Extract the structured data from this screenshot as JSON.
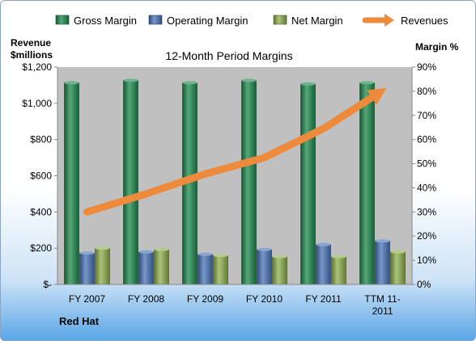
{
  "chart_data": {
    "type": "bar",
    "title": "12-Month Period Margins",
    "categories": [
      [
        "FY 2007"
      ],
      [
        "FY 2008"
      ],
      [
        "FY 2009"
      ],
      [
        "FY 2010"
      ],
      [
        "FY 2011"
      ],
      [
        "TTM 11-",
        "2011"
      ]
    ],
    "series": [
      {
        "name": "Gross Margin",
        "axis": "right",
        "values": [
          83.5,
          84.5,
          83.5,
          84.5,
          83,
          83.5
        ],
        "color": "#1e8a4e"
      },
      {
        "name": "Operating Margin",
        "axis": "right",
        "values": [
          13,
          13.5,
          12.5,
          14.5,
          16.5,
          18
        ],
        "color": "#4a74b8"
      },
      {
        "name": "Net Margin",
        "axis": "right",
        "values": [
          15,
          14.5,
          12,
          11.5,
          11.5,
          13.5
        ],
        "color": "#8fb04c"
      },
      {
        "name": "Revenues",
        "type": "line",
        "axis": "left",
        "values": [
          400,
          500,
          610,
          700,
          860,
          1070
        ],
        "color": "#ee8a3c"
      }
    ],
    "left_axis": {
      "title_lines": [
        "Revenue",
        "$millions"
      ],
      "range": [
        0,
        1200
      ],
      "ticks": [
        0,
        200,
        400,
        600,
        800,
        1000,
        1200
      ],
      "tick_labels": [
        "$-",
        "$200",
        "$400",
        "$600",
        "$800",
        "$1,000",
        "$1,200"
      ]
    },
    "right_axis": {
      "title": "Margin %",
      "range": [
        0,
        90
      ],
      "ticks": [
        0,
        10,
        20,
        30,
        40,
        50,
        60,
        70,
        80,
        90
      ],
      "tick_labels": [
        "0%",
        "10%",
        "20%",
        "30%",
        "40%",
        "50%",
        "60%",
        "70%",
        "80%",
        "90%"
      ]
    },
    "legend_position": "top",
    "grid": false,
    "plot_background": "#c0c0c0",
    "company_label": "Red Hat"
  }
}
